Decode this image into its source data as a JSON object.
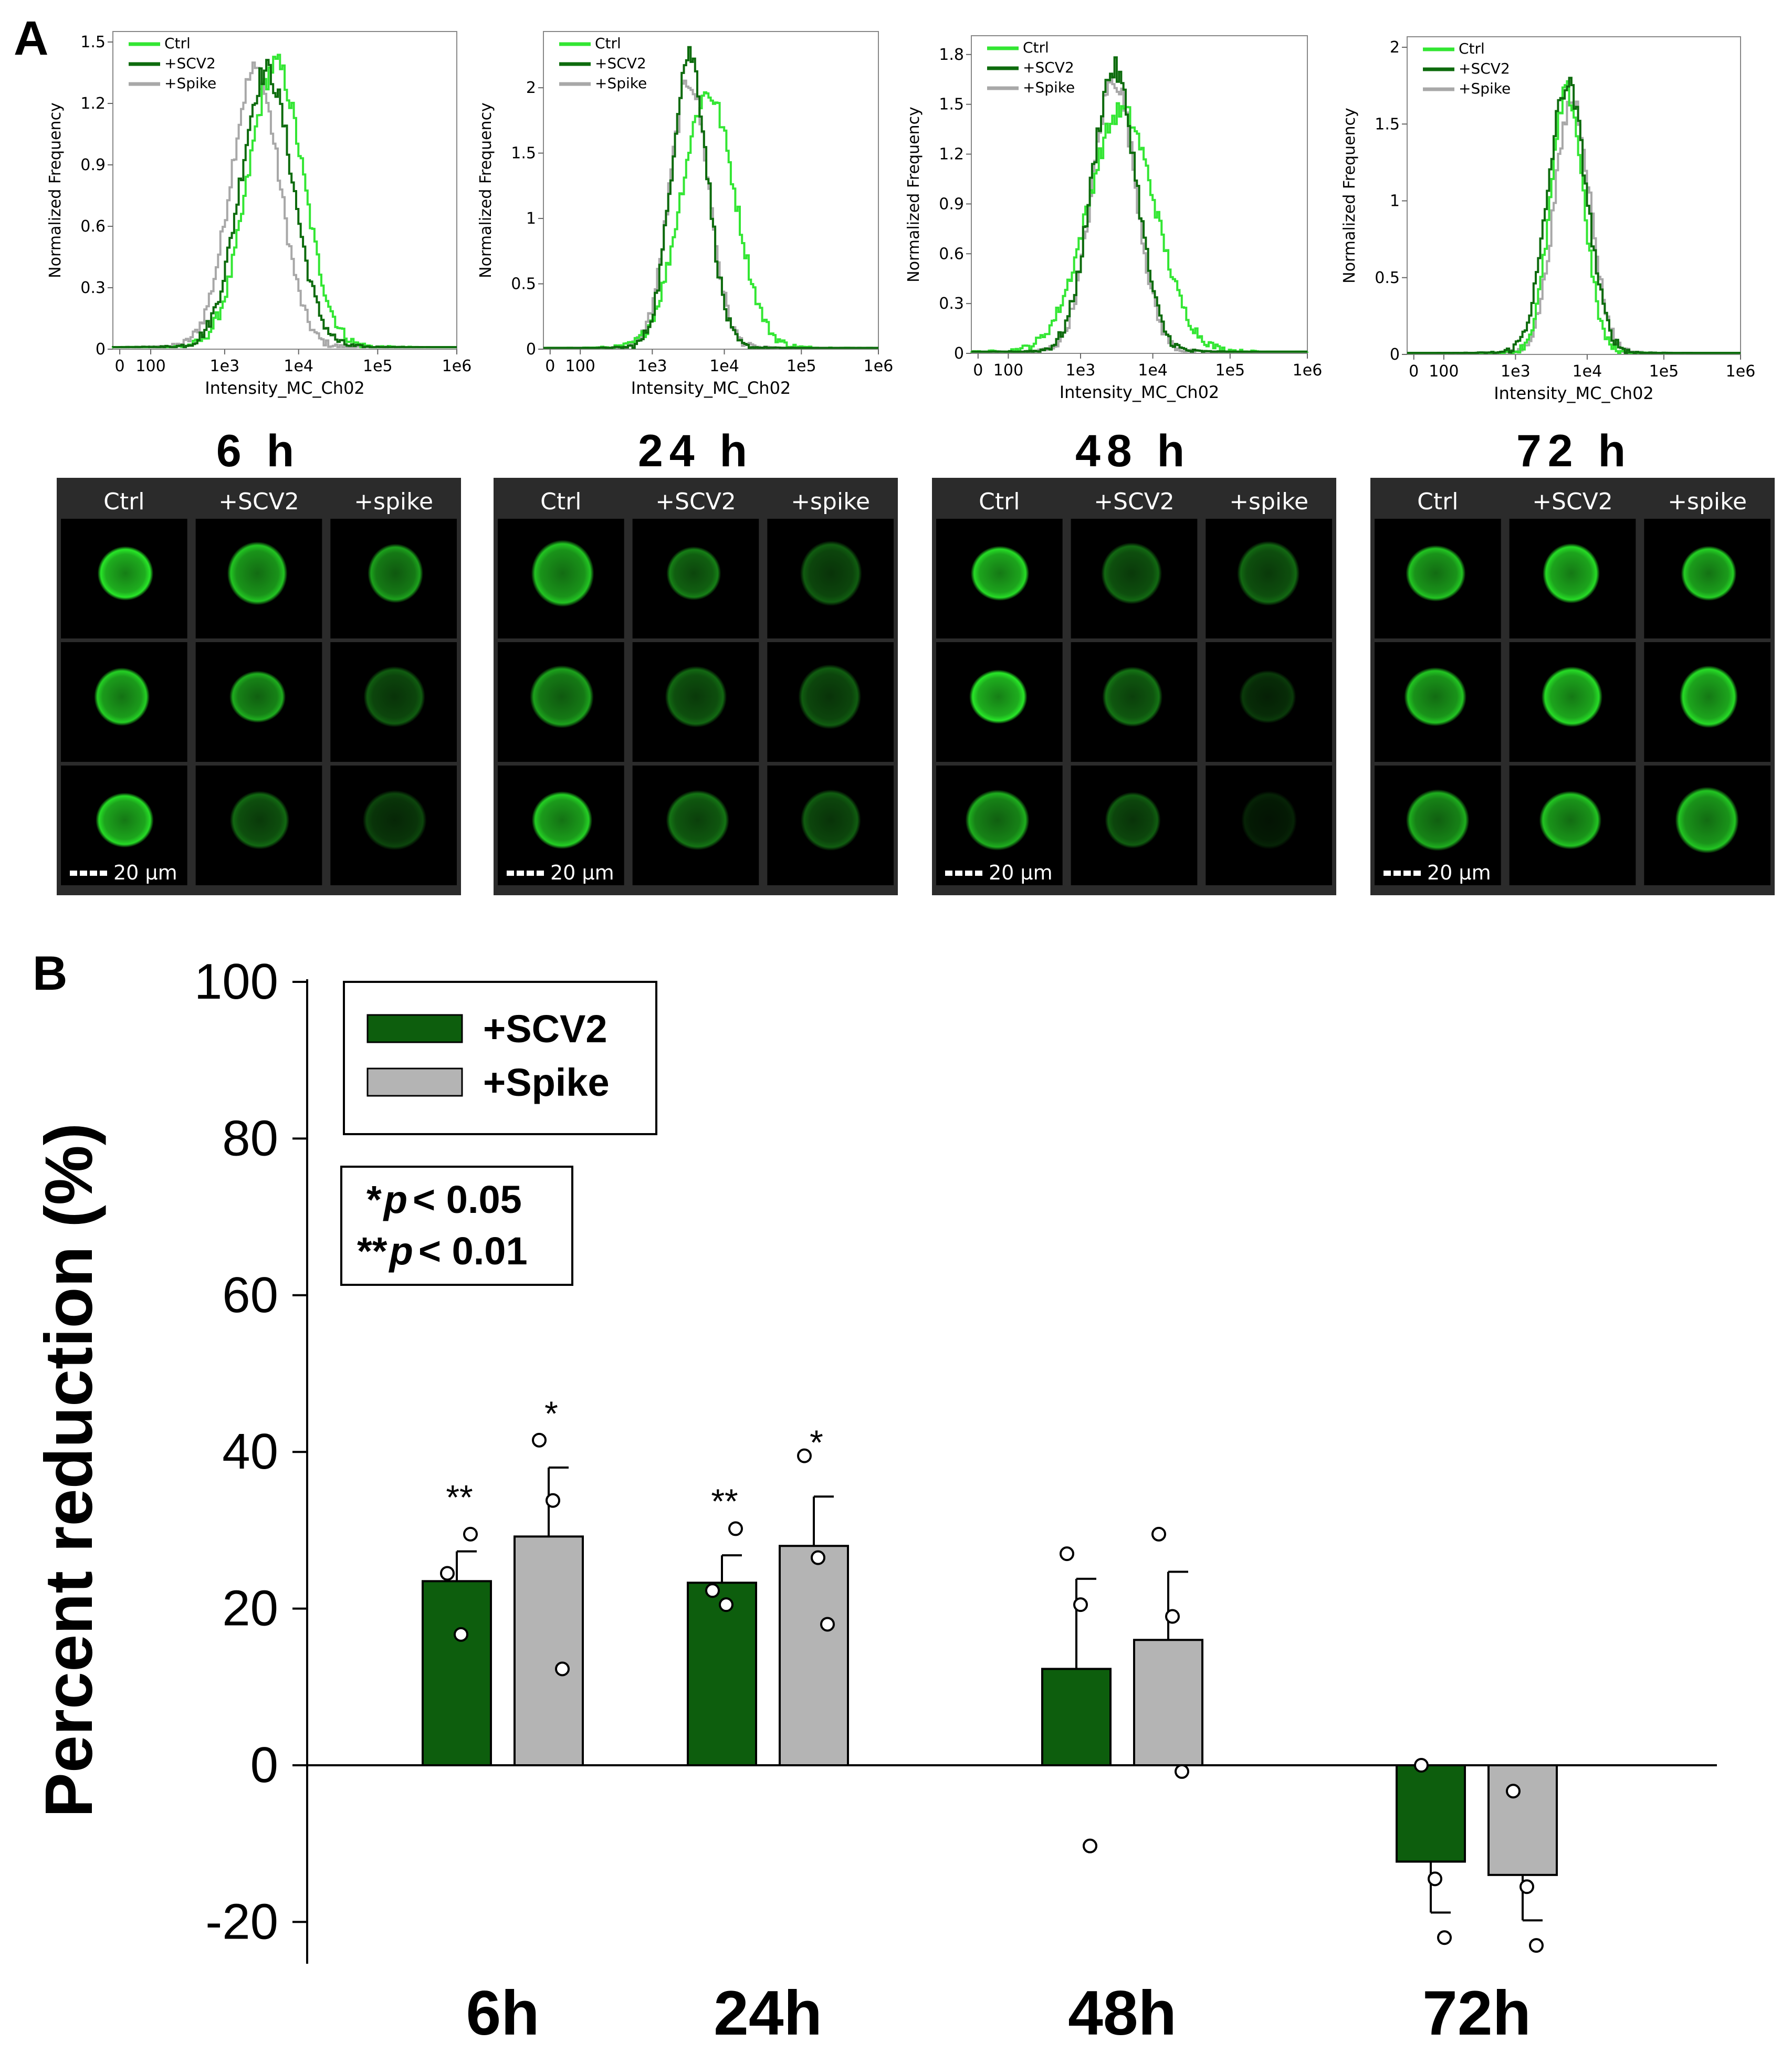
{
  "panel_a": {
    "label": "A",
    "histograms": [
      {
        "time": "6h",
        "ylabel": "Normalized Frequency",
        "xlabel": "Intensity_MC_Ch02",
        "yticks": [
          "0",
          "0.3",
          "0.6",
          "0.9",
          "1.2",
          "1.5"
        ],
        "ymax": 1.5,
        "xticks": [
          "0",
          "100",
          "1e3",
          "1e4",
          "1e5",
          "1e6"
        ],
        "legend": [
          "Ctrl",
          "+SCV2",
          "+Spike"
        ],
        "peaks": {
          "ctrl": {
            "center": 3.62,
            "height": 1.38,
            "width": 0.36
          },
          "scv2": {
            "center": 3.5,
            "height": 1.35,
            "width": 0.34
          },
          "spike": {
            "center": 3.35,
            "height": 1.35,
            "width": 0.32
          }
        }
      },
      {
        "time": "24h",
        "ylabel": "Normalized Frequency",
        "xlabel": "Intensity_MC_Ch02",
        "yticks": [
          "0",
          "0.5",
          "1",
          "1.5",
          "2"
        ],
        "ymax": 2.35,
        "xticks": [
          "0",
          "100",
          "1e3",
          "1e4",
          "1e5",
          "1e6"
        ],
        "legend": [
          "Ctrl",
          "+SCV2",
          "+Spike"
        ],
        "peaks": {
          "ctrl": {
            "center": 3.7,
            "height": 1.95,
            "width": 0.36
          },
          "scv2": {
            "center": 3.45,
            "height": 2.25,
            "width": 0.24
          },
          "spike": {
            "center": 3.45,
            "height": 2.05,
            "width": 0.26
          }
        }
      },
      {
        "time": "48h",
        "ylabel": "Normalized Frequency",
        "xlabel": "Intensity_MC_Ch02",
        "yticks": [
          "0",
          "0.3",
          "0.6",
          "0.9",
          "1.2",
          "1.5",
          "1.8"
        ],
        "ymax": 1.85,
        "xticks": [
          "0",
          "100",
          "1e3",
          "1e4",
          "1e5",
          "1e6"
        ],
        "legend": [
          "Ctrl",
          "+SCV2",
          "+Spike"
        ],
        "peaks": {
          "ctrl": {
            "center": 3.5,
            "height": 1.45,
            "width": 0.45
          },
          "scv2": {
            "center": 3.4,
            "height": 1.7,
            "width": 0.3
          },
          "spike": {
            "center": 3.4,
            "height": 1.65,
            "width": 0.29
          }
        }
      },
      {
        "time": "72h",
        "ylabel": "Normalized Frequency",
        "xlabel": "Intensity_MC_Ch02",
        "yticks": [
          "0",
          "0.5",
          "1",
          "1.5",
          "2"
        ],
        "ymax": 2.0,
        "xticks": [
          "0",
          "100",
          "1e3",
          "1e4",
          "1e5",
          "1e6"
        ],
        "legend": [
          "Ctrl",
          "+SCV2",
          "+Spike"
        ],
        "peaks": {
          "ctrl": {
            "center": 3.65,
            "height": 1.7,
            "width": 0.22
          },
          "scv2": {
            "center": 3.65,
            "height": 1.75,
            "width": 0.26
          },
          "spike": {
            "center": 3.72,
            "height": 1.65,
            "width": 0.24
          }
        }
      }
    ],
    "time_labels": [
      "6 h",
      "24 h",
      "48 h",
      "72 h"
    ],
    "image_columns": [
      "Ctrl",
      "+SCV2",
      "+spike"
    ],
    "scale_bar": "20 µm",
    "cell_brightness": [
      [
        [
          1.0,
          0.85,
          0.7
        ],
        [
          0.9,
          0.75,
          0.4
        ],
        [
          0.95,
          0.45,
          0.3
        ]
      ],
      [
        [
          0.85,
          0.55,
          0.4
        ],
        [
          0.7,
          0.45,
          0.4
        ],
        [
          0.9,
          0.5,
          0.4
        ]
      ],
      [
        [
          0.95,
          0.45,
          0.45
        ],
        [
          1.0,
          0.5,
          0.25
        ],
        [
          0.75,
          0.4,
          0.15
        ]
      ],
      [
        [
          0.85,
          0.95,
          0.9
        ],
        [
          0.85,
          0.95,
          0.95
        ],
        [
          0.75,
          0.85,
          0.85
        ]
      ]
    ]
  },
  "panel_b": {
    "label": "B",
    "legend": {
      "items": [
        {
          "name": "+SCV2",
          "color": "#0d5e0d"
        },
        {
          "name": "+Spike",
          "color": "#b4b4b4"
        }
      ]
    },
    "significance_note": [
      {
        "stars": "*",
        "p": "p",
        "cmp": "< 0.05"
      },
      {
        "stars": "**",
        "p": "p",
        "cmp": "< 0.01"
      }
    ]
  },
  "chart_data": {
    "type": "bar",
    "title": "",
    "xlabel": "",
    "ylabel": "Percent reduction (%)",
    "ylim": [
      -25,
      100
    ],
    "yticks": [
      "100",
      "80",
      "60",
      "40",
      "20",
      "0",
      "-20"
    ],
    "categories": [
      "6h",
      "24h",
      "48h",
      "72h"
    ],
    "series": [
      {
        "name": "+SCV2",
        "color": "#0d5e0d",
        "values": [
          23.5,
          23.3,
          12.3,
          -12.3
        ],
        "errors": [
          3.8,
          3.5,
          11.5,
          6.5
        ],
        "points": [
          [
            24.5,
            16.7,
            29.5
          ],
          [
            22.3,
            20.5,
            30.2
          ],
          [
            27.0,
            20.5,
            -10.3
          ],
          [
            0.0,
            -14.5,
            -22.0
          ]
        ],
        "significance": [
          "**",
          "**",
          "",
          ""
        ]
      },
      {
        "name": "+Spike",
        "color": "#b4b4b4",
        "values": [
          29.2,
          28.0,
          16.0,
          -14.0
        ],
        "errors": [
          8.8,
          6.3,
          8.7,
          5.8
        ],
        "points": [
          [
            41.5,
            33.8,
            12.3
          ],
          [
            39.5,
            26.5,
            18.0
          ],
          [
            29.5,
            19.0,
            -0.8
          ],
          [
            -3.3,
            -15.5,
            -23.0
          ]
        ],
        "significance": [
          "*",
          "*",
          "",
          ""
        ]
      }
    ]
  }
}
